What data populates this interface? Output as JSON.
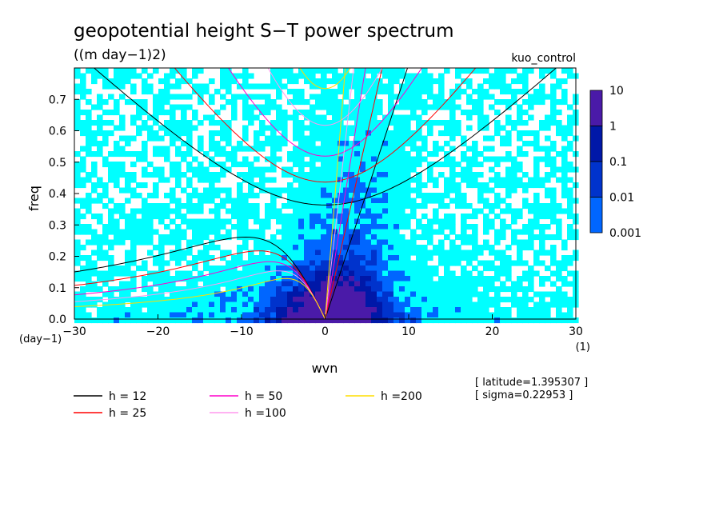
{
  "title": "geopotential height S−T power spectrum",
  "subtitle": "((m day−1)2)",
  "run_name": "kuo_control",
  "chart_data": {
    "type": "heatmap",
    "xlabel": "wvn",
    "ylabel": "freq",
    "x_unit": "(1)",
    "y_unit": "(day−1)",
    "xlim": [
      -30,
      30
    ],
    "ylim": [
      0,
      0.8
    ],
    "x_ticks": [
      "−30",
      "−20",
      "−10",
      "0",
      "10",
      "20",
      "30"
    ],
    "y_ticks": [
      "0.0",
      "0.1",
      "0.2",
      "0.3",
      "0.4",
      "0.5",
      "0.6",
      "0.7"
    ],
    "colorbar": {
      "levels": [
        "0.001",
        "0.01",
        "0.1",
        "1",
        "10"
      ],
      "colors": [
        "#00ffff",
        "#0066ff",
        "#0033cc",
        "#0018a8",
        "#4a1aa8"
      ]
    },
    "dispersion_curves": [
      {
        "name": "h = 12",
        "color": "#000000",
        "h": 12
      },
      {
        "name": "h = 25",
        "color": "#ff0000",
        "h": 25
      },
      {
        "name": "h = 50",
        "color": "#ff00cc",
        "h": 50
      },
      {
        "name": "h =100",
        "color": "#ff99ee",
        "h": 100
      },
      {
        "name": "h =200",
        "color": "#ffdd00",
        "h": 200
      }
    ]
  },
  "annotations": {
    "latitude": "[ latitude=1.395307 ]",
    "sigma": "[ sigma=0.22953 ]"
  }
}
